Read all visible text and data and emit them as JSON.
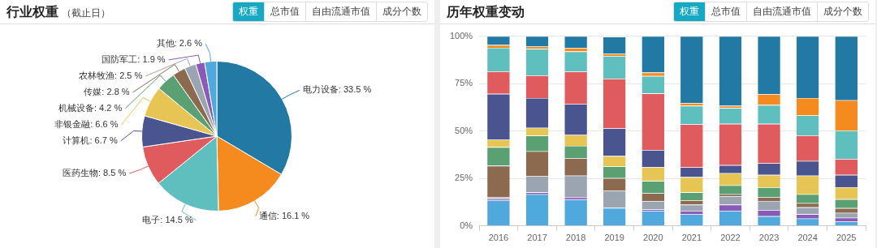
{
  "chart_data": [
    {
      "type": "pie",
      "title": "行业权重",
      "subtitle": "（截止日）",
      "annotations": [
        "权重",
        "总市值",
        "自由流通市值",
        "成分个数"
      ],
      "categories": [
        "电力设备",
        "通信",
        "电子",
        "医药生物",
        "计算机",
        "非银金融",
        "机械设备",
        "传媒",
        "农林牧渔",
        "国防军工",
        "其他"
      ],
      "values": [
        33.5,
        16.1,
        14.5,
        8.5,
        6.7,
        6.6,
        4.2,
        2.8,
        2.5,
        1.9,
        2.6
      ],
      "value_labels": [
        "33.5 %",
        "16.1 %",
        "14.5 %",
        "8.5 %",
        "6.7 %",
        "6.6 %",
        "4.2 %",
        "2.8 %",
        "2.5 %",
        "1.9 %",
        "2.6 %"
      ],
      "colors": [
        "#2279a4",
        "#f58a1f",
        "#5fbfbf",
        "#e05b5e",
        "#4a5590",
        "#e6c555",
        "#5aa072",
        "#8c6a4f",
        "#9aa5b1",
        "#8a5ab8",
        "#4fa9dc"
      ],
      "legend": false
    },
    {
      "type": "bar",
      "stacked": true,
      "title": "历年权重变动",
      "annotations": [
        "权重",
        "总市值",
        "自由流通市值",
        "成分个数"
      ],
      "categories": [
        "2016",
        "2017",
        "2018",
        "2019",
        "2020",
        "2021",
        "2022",
        "2023",
        "2024",
        "2025"
      ],
      "series": [
        {
          "color": "#4fa9dc",
          "values": [
            0.134,
            0.167,
            0.138,
            0.095,
            0.08,
            0.061,
            0.08,
            0.051,
            0.039,
            0.023
          ]
        },
        {
          "color": "#8a5ab8",
          "values": [
            0.009,
            0.01,
            0.012,
            null,
            0.007,
            0.019,
            0.032,
            0.033,
            0.023,
            0.02
          ]
        },
        {
          "color": "#9aa5b1",
          "values": [
            0.008,
            0.085,
            0.115,
            0.09,
            0.044,
            0.032,
            0.045,
            0.048,
            0.036,
            0.026
          ]
        },
        {
          "color": "#8c6a4f",
          "values": [
            0.166,
            0.131,
            0.092,
            0.067,
            0.041,
            0.023,
            0.01,
            0.02,
            0.022,
            0.025
          ]
        },
        {
          "color": "#5aa072",
          "values": [
            0.098,
            0.083,
            0.065,
            0.061,
            0.065,
            0.042,
            0.047,
            0.051,
            0.047,
            0.047
          ]
        },
        {
          "color": "#e6c555",
          "values": [
            0.039,
            0.041,
            0.058,
            0.055,
            0.073,
            0.08,
            0.064,
            0.066,
            0.098,
            0.063
          ]
        },
        {
          "color": "#4a5590",
          "values": [
            0.242,
            0.157,
            0.163,
            0.146,
            0.09,
            0.052,
            0.042,
            0.061,
            0.077,
            0.065
          ]
        },
        {
          "color": "#e05b5e",
          "values": [
            0.118,
            0.119,
            0.17,
            0.262,
            0.298,
            0.226,
            0.218,
            0.208,
            0.135,
            0.084
          ]
        },
        {
          "color": "#5fbfbf",
          "values": [
            0.125,
            0.14,
            0.106,
            0.119,
            0.092,
            0.098,
            0.083,
            0.099,
            0.105,
            0.149
          ]
        },
        {
          "color": "#f58a1f",
          "values": [
            0.014,
            0.012,
            0.019,
            0.012,
            0.018,
            0.014,
            0.012,
            0.057,
            0.092,
            0.16
          ]
        },
        {
          "color": "#2279a4",
          "values": [
            0.047,
            0.055,
            0.062,
            0.09,
            0.192,
            0.353,
            0.367,
            0.306,
            0.326,
            0.338
          ]
        }
      ],
      "ylim": [
        0,
        1
      ],
      "yticks": [
        {
          "value": 0,
          "label": "0%"
        },
        {
          "value": 0.25,
          "label": "25%"
        },
        {
          "value": 0.5,
          "label": "50%"
        },
        {
          "value": 0.75,
          "label": "75%"
        },
        {
          "value": 1,
          "label": "100%"
        }
      ],
      "grid": "y",
      "legend": false
    }
  ]
}
